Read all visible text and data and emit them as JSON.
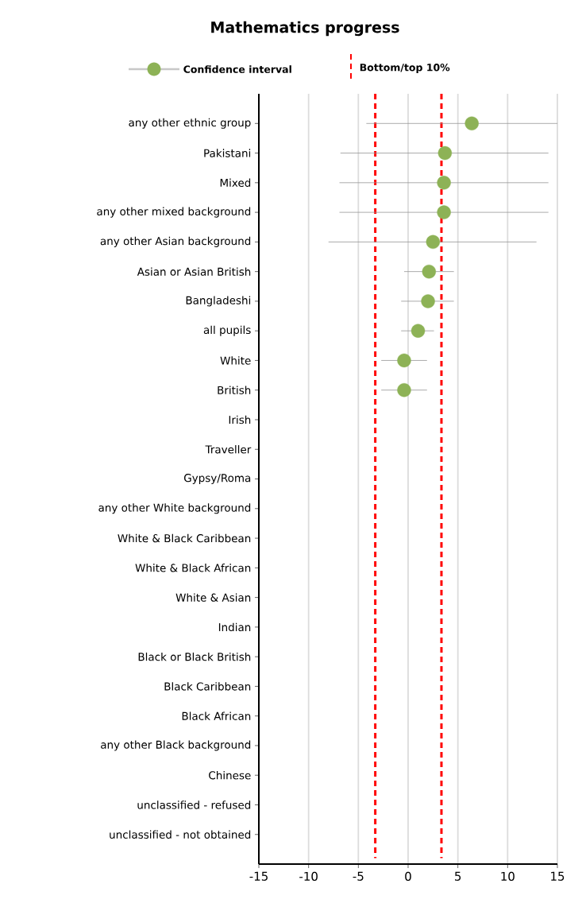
{
  "chart_data": {
    "type": "scatter",
    "orientation": "horizontal",
    "title": "Mathematics progress",
    "categories": [
      "any other ethnic group",
      "Pakistani",
      "Mixed",
      "any other mixed background",
      "any other Asian background",
      "Asian or Asian British",
      "Bangladeshi",
      "all pupils",
      "White",
      "British",
      "Irish",
      "Traveller",
      "Gypsy/Roma",
      "any other White background",
      "White & Black Caribbean",
      "White & Black African",
      "White & Asian",
      "Indian",
      "Black or Black British",
      "Black Caribbean",
      "Black African",
      "any other Black background",
      "Chinese",
      "unclassified - refused",
      "unclassified - not obtained"
    ],
    "series": [
      {
        "name": "Confidence interval",
        "color": "#8db256",
        "values": [
          6.4,
          3.7,
          3.6,
          3.6,
          2.5,
          2.1,
          2.0,
          1.0,
          -0.4,
          -0.4,
          null,
          null,
          null,
          null,
          null,
          null,
          null,
          null,
          null,
          null,
          null,
          null,
          null,
          null,
          null
        ],
        "errors": [
          [
            -4.2,
            15.0
          ],
          [
            -6.8,
            14.1
          ],
          [
            -6.9,
            14.1
          ],
          [
            -6.9,
            14.1
          ],
          [
            -8.0,
            12.9
          ],
          [
            -0.4,
            4.6
          ],
          [
            -0.7,
            4.6
          ],
          [
            -0.7,
            2.6
          ],
          [
            -2.7,
            1.9
          ],
          [
            -2.7,
            1.9
          ],
          null,
          null,
          null,
          null,
          null,
          null,
          null,
          null,
          null,
          null,
          null,
          null,
          null,
          null,
          null
        ]
      }
    ],
    "xlim": [
      -15,
      15
    ],
    "xticks": [
      -15,
      -10,
      -5,
      0,
      5,
      10,
      15
    ],
    "ref_lines": [
      {
        "axis": "x",
        "value": -3.3,
        "label": "Bottom/top 10%",
        "color": "#ff0000",
        "line_style": "dashed"
      },
      {
        "axis": "x",
        "value": 3.35,
        "color": "#ff0000",
        "line_style": "dashed"
      }
    ],
    "grid": "x",
    "legend": "top",
    "marker": "circle"
  }
}
